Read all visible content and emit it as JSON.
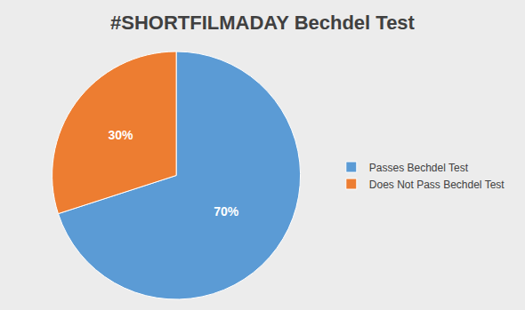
{
  "chart_data": {
    "type": "pie",
    "title": "#SHORTFILMADAY Bechdel Test",
    "categories": [
      "Passes Bechdel Test",
      "Does Not Pass Bechdel Test"
    ],
    "values": [
      70,
      30
    ],
    "value_labels": [
      "70%",
      "30%"
    ],
    "colors": [
      "#5b9bd5",
      "#ed7d31"
    ],
    "data_labels": true,
    "legend": "right"
  }
}
